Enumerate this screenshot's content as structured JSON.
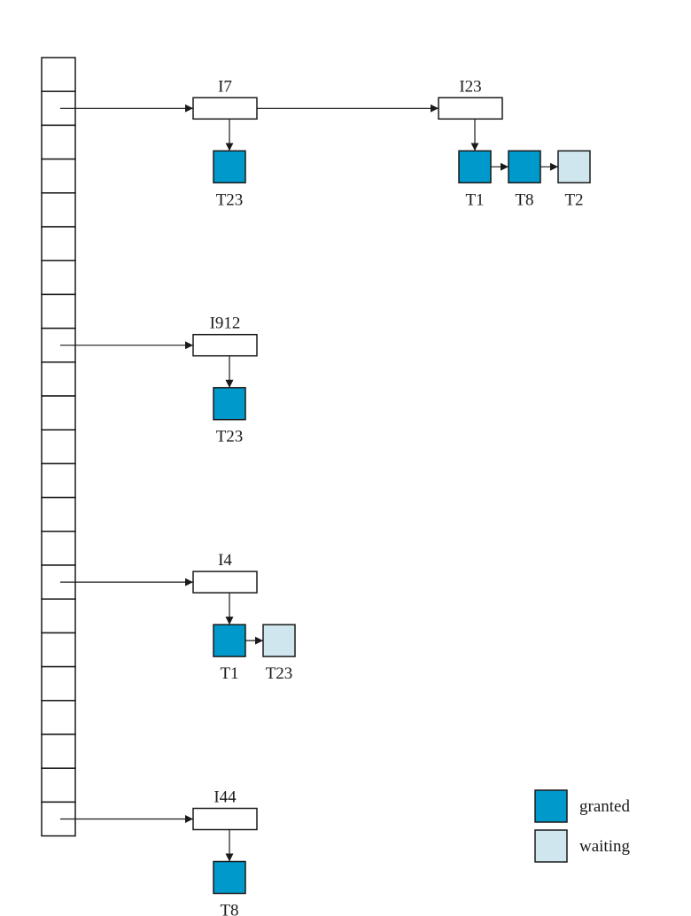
{
  "colors": {
    "granted": "#0099cc",
    "waiting": "#d0e6ee"
  },
  "hash_table": {
    "cells": 23
  },
  "chains": [
    {
      "bucket": 1,
      "items": [
        {
          "label": "I7",
          "requests": [
            {
              "label": "T23",
              "status": "granted"
            }
          ]
        },
        {
          "label": "I23",
          "requests": [
            {
              "label": "T1",
              "status": "granted"
            },
            {
              "label": "T8",
              "status": "granted"
            },
            {
              "label": "T2",
              "status": "waiting"
            }
          ]
        }
      ]
    },
    {
      "bucket": 8,
      "items": [
        {
          "label": "I912",
          "requests": [
            {
              "label": "T23",
              "status": "granted"
            }
          ]
        }
      ]
    },
    {
      "bucket": 15,
      "items": [
        {
          "label": "I4",
          "requests": [
            {
              "label": "T1",
              "status": "granted"
            },
            {
              "label": "T23",
              "status": "waiting"
            }
          ]
        }
      ]
    },
    {
      "bucket": 22,
      "items": [
        {
          "label": "I44",
          "requests": [
            {
              "label": "T8",
              "status": "granted"
            }
          ]
        }
      ]
    }
  ],
  "legend": [
    {
      "label": "granted",
      "status": "granted"
    },
    {
      "label": "waiting",
      "status": "waiting"
    }
  ]
}
